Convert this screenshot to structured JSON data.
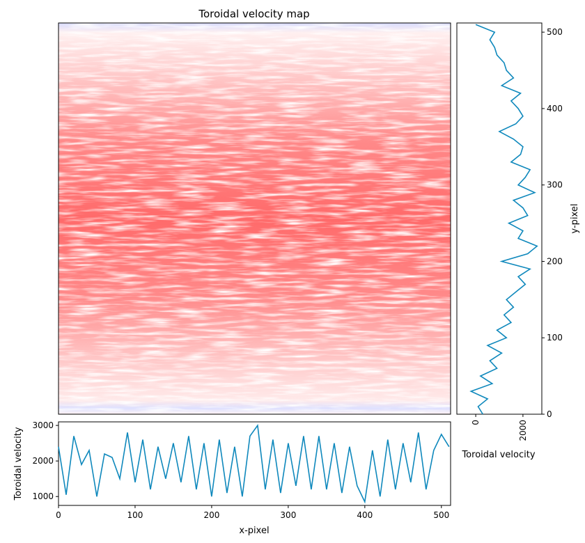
{
  "chart_data": [
    {
      "panel": "heatmap",
      "type": "heatmap",
      "title": "Toroidal velocity map",
      "colormap": "bwr",
      "colors": {
        "high": "#ff0000",
        "mid": "#ffffff",
        "low": "#0000ff"
      },
      "description_values": {
        "center_level": 0.55,
        "edge_level": 0.08
      },
      "x_range": [
        0,
        512
      ],
      "y_range": [
        0,
        512
      ],
      "axes_visible": false
    },
    {
      "panel": "bottom-profile",
      "type": "line",
      "xlabel": "x-pixel",
      "ylabel": "Toroidal velocity",
      "xlim": [
        0,
        512
      ],
      "ylim": [
        750,
        3100
      ],
      "xticks": [
        "0",
        "100",
        "200",
        "300",
        "400",
        "500"
      ],
      "yticks": [
        "1000",
        "2000",
        "3000"
      ],
      "color": "#0e88bc",
      "x": [
        0,
        10,
        20,
        30,
        40,
        50,
        60,
        70,
        80,
        90,
        100,
        110,
        120,
        130,
        140,
        150,
        160,
        170,
        180,
        190,
        200,
        210,
        220,
        230,
        240,
        250,
        260,
        270,
        280,
        290,
        300,
        310,
        320,
        330,
        340,
        350,
        360,
        370,
        380,
        390,
        400,
        410,
        420,
        430,
        440,
        450,
        460,
        470,
        480,
        490,
        500,
        510
      ],
      "y": [
        2400,
        1050,
        2700,
        1900,
        2300,
        1000,
        2200,
        2100,
        1500,
        2800,
        1400,
        2600,
        1200,
        2400,
        1500,
        2500,
        1400,
        2700,
        1200,
        2500,
        1000,
        2600,
        1100,
        2400,
        1000,
        2700,
        3000,
        1200,
        2600,
        1100,
        2500,
        1300,
        2700,
        1200,
        2700,
        1200,
        2500,
        1100,
        2400,
        1300,
        850,
        2300,
        1000,
        2600,
        1200,
        2500,
        1400,
        2800,
        1200,
        2300,
        2750,
        2400
      ]
    },
    {
      "panel": "right-profile",
      "type": "line",
      "xlabel": "Toroidal velocity",
      "ylabel": "y-pixel",
      "xlim": [
        -800,
        2800
      ],
      "ylim": [
        0,
        512
      ],
      "xticks": [
        "0",
        "2000"
      ],
      "yticks": [
        "0",
        "100",
        "200",
        "300",
        "400",
        "500"
      ],
      "color": "#0e88bc",
      "y": [
        0,
        10,
        20,
        30,
        40,
        50,
        60,
        70,
        80,
        90,
        100,
        110,
        120,
        130,
        140,
        150,
        160,
        170,
        180,
        190,
        200,
        210,
        220,
        230,
        240,
        250,
        260,
        270,
        280,
        290,
        300,
        310,
        320,
        330,
        340,
        350,
        360,
        370,
        380,
        390,
        400,
        410,
        420,
        430,
        440,
        450,
        460,
        470,
        480,
        490,
        500,
        510
      ],
      "x": [
        300,
        100,
        500,
        -200,
        700,
        200,
        900,
        600,
        1100,
        500,
        1300,
        900,
        1500,
        1200,
        1600,
        1300,
        1700,
        2100,
        1800,
        2300,
        1100,
        2200,
        2600,
        1800,
        2000,
        1400,
        2200,
        2000,
        1600,
        2500,
        1800,
        2100,
        2300,
        1500,
        1900,
        2000,
        1600,
        1000,
        1700,
        2000,
        1800,
        1500,
        1900,
        1100,
        1600,
        1300,
        1200,
        900,
        800,
        600,
        800,
        0
      ]
    }
  ]
}
